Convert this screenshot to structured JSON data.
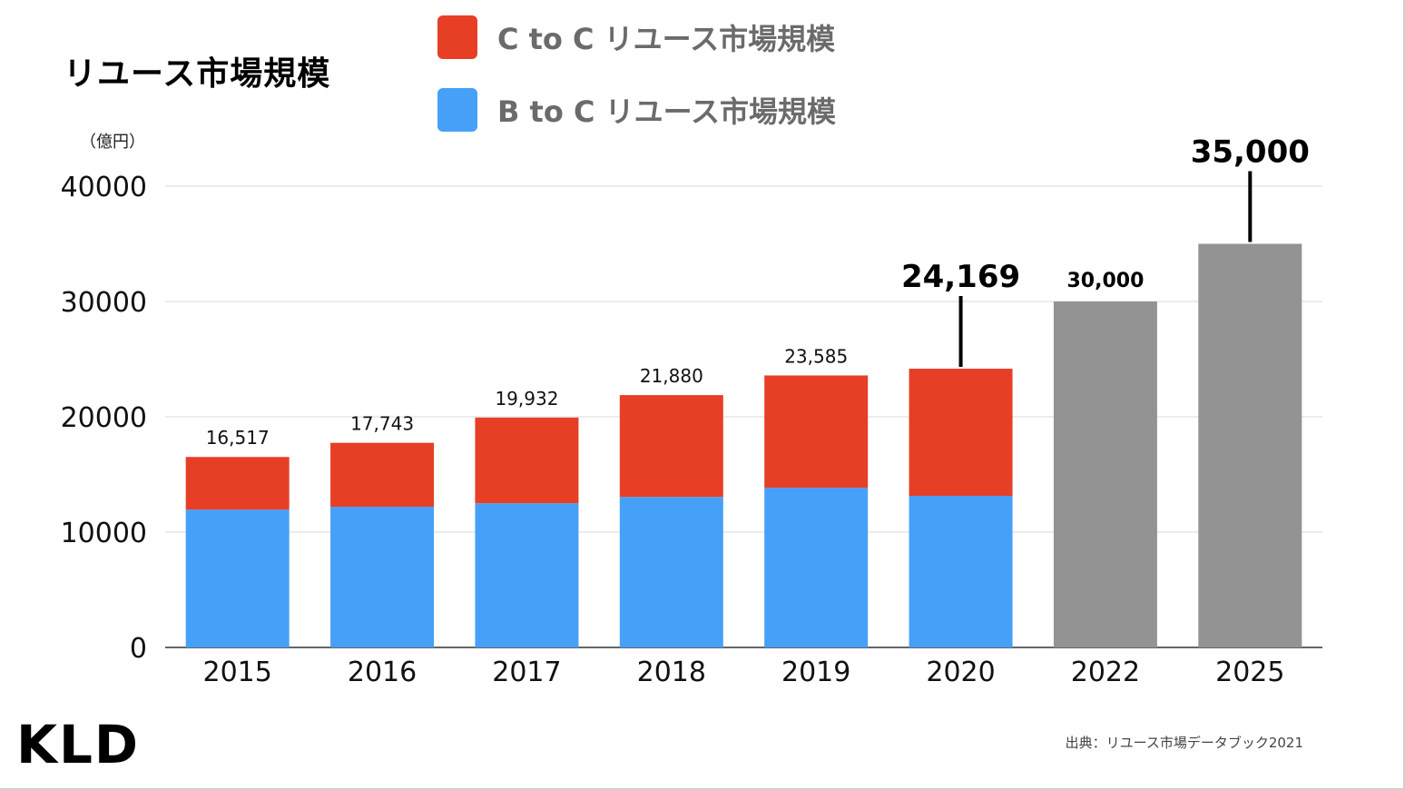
{
  "title": "リユース市場規模",
  "unit_label": "（億円）",
  "logo_text": "KLD",
  "source_text": "出典：リユース市場データブック2021",
  "colors": {
    "c_to_c": "#e63f26",
    "b_to_c": "#46a0f7",
    "forecast": "#939393",
    "grid": "#d9d9d9",
    "axis": "#333333"
  },
  "chart_data": {
    "type": "bar",
    "stacked": true,
    "categories": [
      "2015",
      "2016",
      "2017",
      "2018",
      "2019",
      "2020",
      "2022",
      "2025"
    ],
    "series": [
      {
        "name": "B to C リユース市場規模",
        "values": [
          11950,
          12200,
          12500,
          13050,
          13850,
          13150,
          null,
          null
        ]
      },
      {
        "name": "C to C リユース市場規模",
        "values": [
          4567,
          5543,
          7432,
          8830,
          9735,
          11019,
          null,
          null
        ]
      },
      {
        "name": "",
        "values": [
          null,
          null,
          null,
          null,
          null,
          null,
          30000,
          35000
        ]
      }
    ],
    "totals": [
      "16,517",
      "17,743",
      "19,932",
      "21,880",
      "23,585",
      "24,169",
      "30,000",
      "35,000"
    ],
    "legend": [
      "C to C リユース市場規模",
      "B to C リユース市場規模"
    ],
    "legend_position": "top",
    "yticks": [
      "0",
      "10000",
      "20000",
      "30000",
      "40000"
    ],
    "ylim": [
      0,
      40000
    ],
    "grid": true
  }
}
